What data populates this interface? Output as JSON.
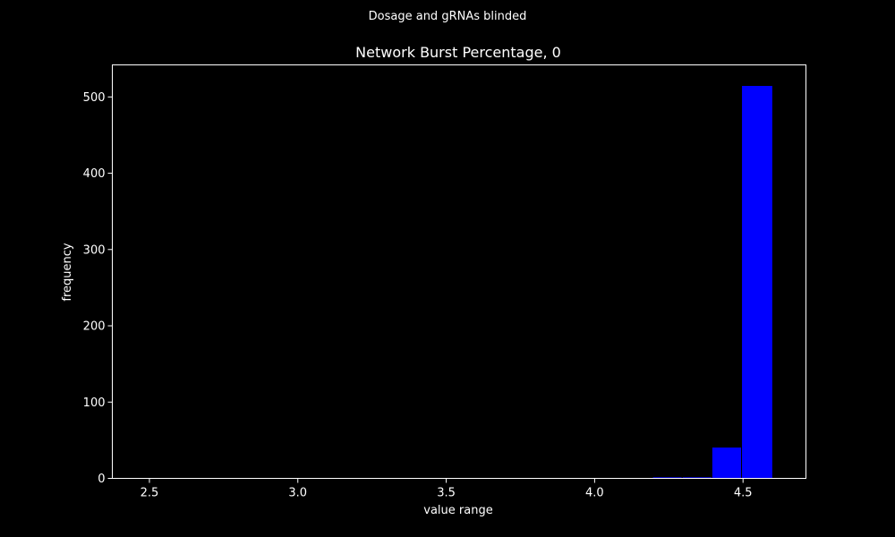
{
  "chart_data": {
    "type": "bar",
    "suptitle": "Dosage and gRNAs blinded",
    "title": "Network Burst Percentage, 0",
    "xlabel": "value range",
    "ylabel": "frequency",
    "xlim": [
      2.375,
      4.712
    ],
    "ylim": [
      0,
      542
    ],
    "xticks": [
      "2.5",
      "3.0",
      "3.5",
      "4.0",
      "4.5"
    ],
    "yticks": [
      "0",
      "100",
      "200",
      "300",
      "400",
      "500"
    ],
    "bins": [
      {
        "x0": 4.095,
        "x1": 4.195,
        "value": 1
      },
      {
        "x0": 4.195,
        "x1": 4.295,
        "value": 2
      },
      {
        "x0": 4.295,
        "x1": 4.395,
        "value": 2
      },
      {
        "x0": 4.395,
        "x1": 4.495,
        "value": 41
      },
      {
        "x0": 4.495,
        "x1": 4.6,
        "value": 515
      }
    ],
    "bar_color": "#0000ff",
    "background": "#000000",
    "grid": false
  }
}
